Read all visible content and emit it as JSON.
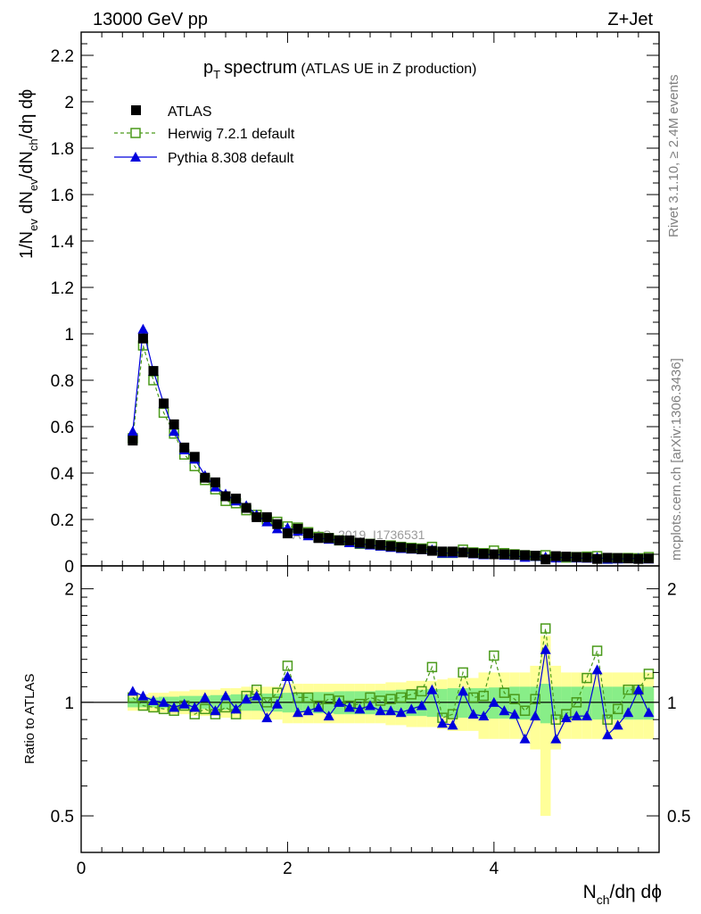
{
  "header": {
    "left": "13000 GeV pp",
    "right": "Z+Jet"
  },
  "side_text": {
    "rivet": "Rivet 3.1.10, ≥ 2.4M events",
    "mcplots": "mcplots.cern.ch [arXiv:1306.3436]"
  },
  "watermark": "ATLAS_2019_I1736531",
  "chart_data": [
    {
      "type": "line",
      "title_main": "p",
      "title_sub": "T",
      "title_rest": "spectrum",
      "title_paren": "(ATLAS UE in Z production)",
      "ylabel": "1/N_ev dN_ev/dN_ch/dη dϕ",
      "ylabel_parts": {
        "a": "1/N",
        "b": "ev",
        "c": " dN",
        "d": "ev",
        "e": "/dN",
        "f": "ch",
        "g": "/dη dϕ"
      },
      "xlim": [
        0,
        5.6
      ],
      "ylim": [
        0,
        2.3
      ],
      "yticks": [
        "0",
        "0.2",
        "0.4",
        "0.6",
        "0.8",
        "1",
        "1.2",
        "1.4",
        "1.6",
        "1.8",
        "2",
        "2.2"
      ],
      "ytick_values": [
        0,
        0.2,
        0.4,
        0.6,
        0.8,
        1.0,
        1.2,
        1.4,
        1.6,
        1.8,
        2.0,
        2.2
      ],
      "legend": {
        "position": "top-left",
        "entries": [
          "ATLAS",
          "Herwig 7.2.1 default",
          "Pythia 8.308 default"
        ]
      },
      "x": [
        0.5,
        0.6,
        0.7,
        0.8,
        0.9,
        1.0,
        1.1,
        1.2,
        1.3,
        1.4,
        1.5,
        1.6,
        1.7,
        1.8,
        1.9,
        2.0,
        2.1,
        2.2,
        2.3,
        2.4,
        2.5,
        2.6,
        2.7,
        2.8,
        2.9,
        3.0,
        3.1,
        3.2,
        3.3,
        3.4,
        3.5,
        3.6,
        3.7,
        3.8,
        3.9,
        4.0,
        4.1,
        4.2,
        4.3,
        4.4,
        4.5,
        4.6,
        4.7,
        4.8,
        4.9,
        5.0,
        5.1,
        5.2,
        5.3,
        5.4,
        5.5
      ],
      "series": [
        {
          "name": "ATLAS",
          "color": "#000000",
          "marker": "filled-square",
          "values": [
            0.54,
            0.98,
            0.84,
            0.7,
            0.61,
            0.51,
            0.47,
            0.38,
            0.36,
            0.3,
            0.29,
            0.25,
            0.21,
            0.21,
            0.18,
            0.14,
            0.16,
            0.14,
            0.12,
            0.12,
            0.11,
            0.11,
            0.1,
            0.095,
            0.09,
            0.085,
            0.08,
            0.075,
            0.072,
            0.065,
            0.062,
            0.062,
            0.058,
            0.055,
            0.052,
            0.05,
            0.05,
            0.048,
            0.046,
            0.044,
            0.028,
            0.042,
            0.04,
            0.038,
            0.036,
            0.03,
            0.035,
            0.034,
            0.032,
            0.03,
            0.032
          ]
        },
        {
          "name": "Herwig 7.2.1 default",
          "color": "#4a9a1a",
          "marker": "open-square",
          "dashed": true,
          "values": [
            0.55,
            0.95,
            0.8,
            0.66,
            0.57,
            0.48,
            0.43,
            0.37,
            0.33,
            0.28,
            0.27,
            0.24,
            0.22,
            0.2,
            0.19,
            0.17,
            0.165,
            0.145,
            0.125,
            0.12,
            0.11,
            0.105,
            0.095,
            0.095,
            0.088,
            0.088,
            0.082,
            0.078,
            0.075,
            0.082,
            0.056,
            0.056,
            0.07,
            0.058,
            0.055,
            0.066,
            0.055,
            0.05,
            0.046,
            0.043,
            0.046,
            0.038,
            0.036,
            0.038,
            0.04,
            0.042,
            0.031,
            0.033,
            0.034,
            0.033,
            0.038
          ]
        },
        {
          "name": "Pythia 8.308 default",
          "color": "#0000dd",
          "marker": "filled-triangle",
          "values": [
            0.58,
            1.02,
            0.84,
            0.7,
            0.58,
            0.5,
            0.46,
            0.39,
            0.34,
            0.31,
            0.28,
            0.26,
            0.22,
            0.19,
            0.16,
            0.165,
            0.15,
            0.13,
            0.12,
            0.115,
            0.11,
            0.1,
            0.095,
            0.09,
            0.085,
            0.08,
            0.075,
            0.072,
            0.07,
            0.07,
            0.055,
            0.055,
            0.06,
            0.052,
            0.048,
            0.05,
            0.046,
            0.045,
            0.037,
            0.041,
            0.039,
            0.034,
            0.038,
            0.034,
            0.033,
            0.037,
            0.029,
            0.03,
            0.031,
            0.033,
            0.03
          ]
        }
      ]
    },
    {
      "type": "line",
      "ylabel": "Ratio to ATLAS",
      "xlabel": "N_ch/dη dϕ",
      "xlabel_parts": {
        "a": "N",
        "b": "ch",
        "c": "/dη dϕ"
      },
      "scale": "log",
      "xlim": [
        0,
        5.6
      ],
      "ylim": [
        0.4,
        2.3
      ],
      "xticks": [
        "0",
        "2",
        "4"
      ],
      "xtick_values": [
        0,
        2,
        4
      ],
      "yticks": [
        "0.5",
        "1",
        "2"
      ],
      "ytick_values": [
        0.5,
        1,
        2
      ],
      "reference_line": 1,
      "x": [
        0.5,
        0.6,
        0.7,
        0.8,
        0.9,
        1.0,
        1.1,
        1.2,
        1.3,
        1.4,
        1.5,
        1.6,
        1.7,
        1.8,
        1.9,
        2.0,
        2.1,
        2.2,
        2.3,
        2.4,
        2.5,
        2.6,
        2.7,
        2.8,
        2.9,
        3.0,
        3.1,
        3.2,
        3.3,
        3.4,
        3.5,
        3.6,
        3.7,
        3.8,
        3.9,
        4.0,
        4.1,
        4.2,
        4.3,
        4.4,
        4.5,
        4.6,
        4.7,
        4.8,
        4.9,
        5.0,
        5.1,
        5.2,
        5.3,
        5.4,
        5.5
      ],
      "band_inner": [
        0.03,
        0.03,
        0.03,
        0.035,
        0.035,
        0.04,
        0.04,
        0.04,
        0.045,
        0.045,
        0.05,
        0.05,
        0.05,
        0.055,
        0.055,
        0.06,
        0.06,
        0.06,
        0.065,
        0.065,
        0.07,
        0.07,
        0.07,
        0.07,
        0.075,
        0.075,
        0.08,
        0.08,
        0.08,
        0.085,
        0.085,
        0.09,
        0.09,
        0.09,
        0.09,
        0.095,
        0.095,
        0.1,
        0.1,
        0.1,
        0.12,
        0.1,
        0.1,
        0.1,
        0.1,
        0.1,
        0.1,
        0.1,
        0.1,
        0.1,
        0.1
      ],
      "band_outer": [
        0.05,
        0.05,
        0.06,
        0.06,
        0.07,
        0.07,
        0.08,
        0.08,
        0.08,
        0.09,
        0.09,
        0.1,
        0.1,
        0.1,
        0.1,
        0.12,
        0.12,
        0.12,
        0.12,
        0.12,
        0.12,
        0.12,
        0.12,
        0.12,
        0.12,
        0.13,
        0.13,
        0.14,
        0.14,
        0.14,
        0.15,
        0.16,
        0.16,
        0.16,
        0.2,
        0.2,
        0.2,
        0.2,
        0.2,
        0.25,
        0.5,
        0.25,
        0.2,
        0.2,
        0.2,
        0.2,
        0.2,
        0.2,
        0.2,
        0.2,
        0.2
      ],
      "series": [
        {
          "name": "Herwig 7.2.1 default",
          "color": "#4a9a1a",
          "marker": "open-square",
          "dashed": true,
          "values": [
            1.03,
            0.98,
            0.97,
            0.96,
            0.95,
            0.98,
            0.93,
            0.96,
            0.93,
            0.97,
            0.93,
            1.04,
            1.08,
            1.0,
            1.06,
            1.25,
            1.03,
            1.03,
            0.98,
            1.02,
            1.01,
            0.98,
            0.99,
            1.03,
            1.01,
            1.02,
            1.03,
            1.05,
            1.07,
            1.24,
            0.91,
            0.93,
            1.2,
            1.03,
            1.04,
            1.33,
            1.06,
            1.02,
            0.95,
            1.02,
            1.57,
            0.9,
            0.93,
            1.0,
            1.16,
            1.37,
            0.9,
            0.96,
            1.08,
            1.08,
            1.19
          ]
        },
        {
          "name": "Pythia 8.308 default",
          "color": "#0000dd",
          "marker": "filled-triangle",
          "values": [
            1.07,
            1.04,
            1.01,
            1.0,
            0.97,
            0.99,
            0.97,
            1.03,
            0.95,
            1.04,
            0.96,
            1.02,
            1.04,
            0.91,
            0.99,
            1.17,
            0.94,
            0.95,
            0.97,
            0.92,
            1.0,
            0.97,
            0.96,
            0.98,
            0.95,
            0.95,
            0.94,
            0.96,
            0.98,
            1.08,
            0.88,
            0.87,
            1.07,
            0.93,
            0.92,
            1.0,
            0.95,
            0.93,
            0.8,
            0.92,
            1.38,
            0.8,
            0.91,
            0.92,
            0.92,
            1.22,
            0.82,
            0.87,
            0.94,
            1.08,
            0.94
          ]
        }
      ]
    }
  ]
}
